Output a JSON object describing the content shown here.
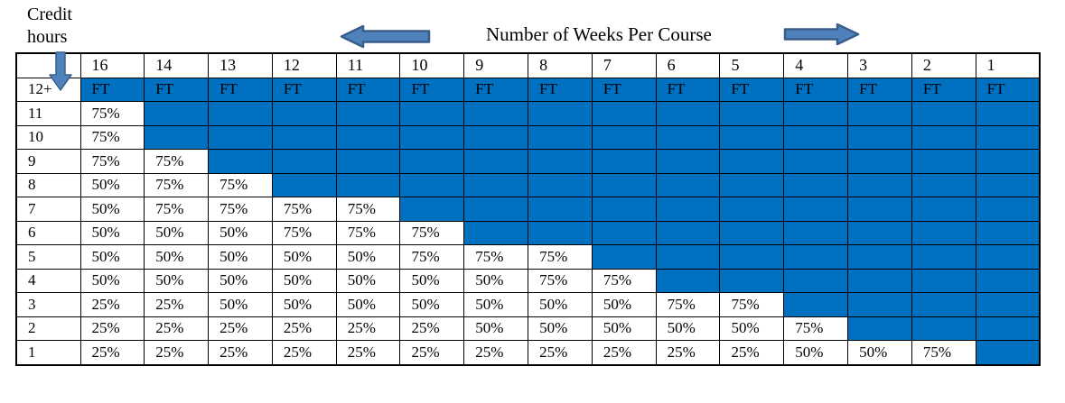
{
  "labels": {
    "credit_hours": "Credit\nhours",
    "weeks_title": "Number of Weeks Per Course"
  },
  "colors": {
    "cell_blue": "#0070C0",
    "arrow_fill": "#4F81BD",
    "arrow_border": "#385D8A",
    "grid_border": "#000000"
  },
  "icons": {
    "left_arrow": "left-arrow",
    "right_arrow": "right-arrow",
    "down_arrow": "down-arrow"
  },
  "table": {
    "corner_header": "",
    "columns": [
      "16",
      "14",
      "13",
      "12",
      "11",
      "10",
      "9",
      "8",
      "7",
      "6",
      "5",
      "4",
      "3",
      "2",
      "1"
    ],
    "rows": [
      {
        "credit_hours": "12+",
        "cells": [
          "FT",
          "FT",
          "FT",
          "FT",
          "FT",
          "FT",
          "FT",
          "FT",
          "FT",
          "FT",
          "FT",
          "FT",
          "FT",
          "FT",
          "FT"
        ]
      },
      {
        "credit_hours": "11",
        "cells": [
          "75%",
          "",
          "",
          "",
          "",
          "",
          "",
          "",
          "",
          "",
          "",
          "",
          "",
          "",
          ""
        ]
      },
      {
        "credit_hours": "10",
        "cells": [
          "75%",
          "",
          "",
          "",
          "",
          "",
          "",
          "",
          "",
          "",
          "",
          "",
          "",
          "",
          ""
        ]
      },
      {
        "credit_hours": "9",
        "cells": [
          "75%",
          "75%",
          "",
          "",
          "",
          "",
          "",
          "",
          "",
          "",
          "",
          "",
          "",
          "",
          ""
        ]
      },
      {
        "credit_hours": "8",
        "cells": [
          "50%",
          "75%",
          "75%",
          "",
          "",
          "",
          "",
          "",
          "",
          "",
          "",
          "",
          "",
          "",
          ""
        ]
      },
      {
        "credit_hours": "7",
        "cells": [
          "50%",
          "75%",
          "75%",
          "75%",
          "75%",
          "",
          "",
          "",
          "",
          "",
          "",
          "",
          "",
          "",
          ""
        ]
      },
      {
        "credit_hours": "6",
        "cells": [
          "50%",
          "50%",
          "50%",
          "75%",
          "75%",
          "75%",
          "",
          "",
          "",
          "",
          "",
          "",
          "",
          "",
          ""
        ]
      },
      {
        "credit_hours": "5",
        "cells": [
          "50%",
          "50%",
          "50%",
          "50%",
          "50%",
          "75%",
          "75%",
          "75%",
          "",
          "",
          "",
          "",
          "",
          "",
          ""
        ]
      },
      {
        "credit_hours": "4",
        "cells": [
          "50%",
          "50%",
          "50%",
          "50%",
          "50%",
          "50%",
          "50%",
          "75%",
          "75%",
          "",
          "",
          "",
          "",
          "",
          ""
        ]
      },
      {
        "credit_hours": "3",
        "cells": [
          "25%",
          "25%",
          "50%",
          "50%",
          "50%",
          "50%",
          "50%",
          "50%",
          "50%",
          "75%",
          "75%",
          "",
          "",
          "",
          ""
        ]
      },
      {
        "credit_hours": "2",
        "cells": [
          "25%",
          "25%",
          "25%",
          "25%",
          "25%",
          "25%",
          "50%",
          "50%",
          "50%",
          "50%",
          "50%",
          "75%",
          "",
          "",
          ""
        ]
      },
      {
        "credit_hours": "1",
        "cells": [
          "25%",
          "25%",
          "25%",
          "25%",
          "25%",
          "25%",
          "25%",
          "25%",
          "25%",
          "25%",
          "25%",
          "50%",
          "50%",
          "75%",
          ""
        ]
      }
    ]
  }
}
